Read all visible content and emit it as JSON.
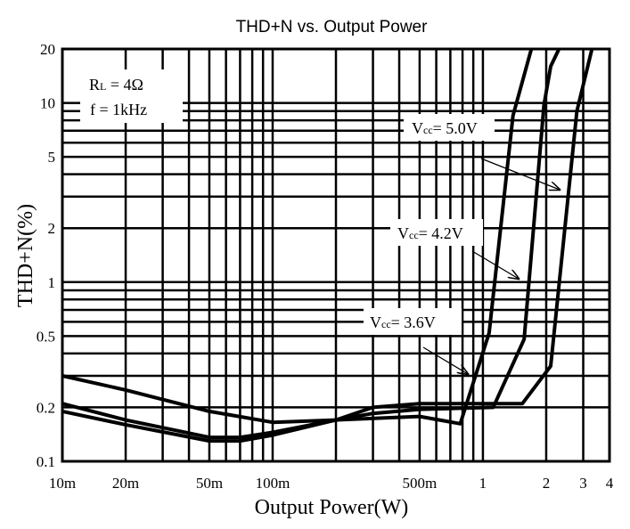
{
  "chart_data": {
    "type": "line",
    "title": "THD+N vs. Output Power",
    "xlabel": "Output Power(W)",
    "ylabel": "THD+N(%)",
    "xscale": "log",
    "yscale": "log",
    "xlim": [
      0.01,
      4
    ],
    "ylim": [
      0.1,
      20
    ],
    "grid": true,
    "xticks": [
      {
        "v": 0.01,
        "label": "10m"
      },
      {
        "v": 0.02,
        "label": "20m"
      },
      {
        "v": 0.05,
        "label": "50m"
      },
      {
        "v": 0.1,
        "label": "100m"
      },
      {
        "v": 0.5,
        "label": "500m"
      },
      {
        "v": 1,
        "label": "1"
      },
      {
        "v": 2,
        "label": "2"
      },
      {
        "v": 3,
        "label": "3"
      },
      {
        "v": 4,
        "label": "4"
      }
    ],
    "yticks": [
      {
        "v": 20,
        "label": "20"
      },
      {
        "v": 10,
        "label": "10"
      },
      {
        "v": 5,
        "label": "5"
      },
      {
        "v": 2,
        "label": "2"
      },
      {
        "v": 1,
        "label": "1"
      },
      {
        "v": 0.5,
        "label": "0.5"
      },
      {
        "v": 0.2,
        "label": "0.2"
      },
      {
        "v": 0.1,
        "label": "0.1"
      }
    ],
    "conditions": {
      "rl_main": "R",
      "rl_sub": "L",
      "rl_value": " = 4Ω",
      "freq": "f = 1kHz"
    },
    "series": [
      {
        "name": "Vcc = 3.6V",
        "label_main": "V",
        "label_sub": "cc",
        "label_value": "= 3.6V",
        "x": [
          0.01,
          0.02,
          0.05,
          0.1,
          0.2,
          0.5,
          0.78,
          1.07,
          1.39,
          1.7
        ],
        "y": [
          0.3,
          0.25,
          0.19,
          0.165,
          0.17,
          0.178,
          0.162,
          0.52,
          8.5,
          20
        ]
      },
      {
        "name": "Vcc = 4.2V",
        "label_main": "V",
        "label_sub": "cc",
        "label_value": "= 4.2V",
        "x": [
          0.01,
          0.02,
          0.05,
          0.07,
          0.1,
          0.2,
          0.3,
          0.5,
          1.12,
          1.57,
          1.95,
          2.1,
          2.3
        ],
        "y": [
          0.21,
          0.17,
          0.136,
          0.136,
          0.145,
          0.17,
          0.185,
          0.195,
          0.2,
          0.48,
          9.7,
          16,
          20
        ]
      },
      {
        "name": "Vcc = 5.0V",
        "label_main": "V",
        "label_sub": "cc",
        "label_value": "= 5.0V",
        "x": [
          0.01,
          0.02,
          0.05,
          0.07,
          0.1,
          0.2,
          0.3,
          0.5,
          1,
          1.54,
          2.1,
          2.8,
          3.3
        ],
        "y": [
          0.19,
          0.16,
          0.13,
          0.13,
          0.14,
          0.17,
          0.2,
          0.21,
          0.21,
          0.21,
          0.34,
          9,
          20
        ]
      }
    ]
  }
}
